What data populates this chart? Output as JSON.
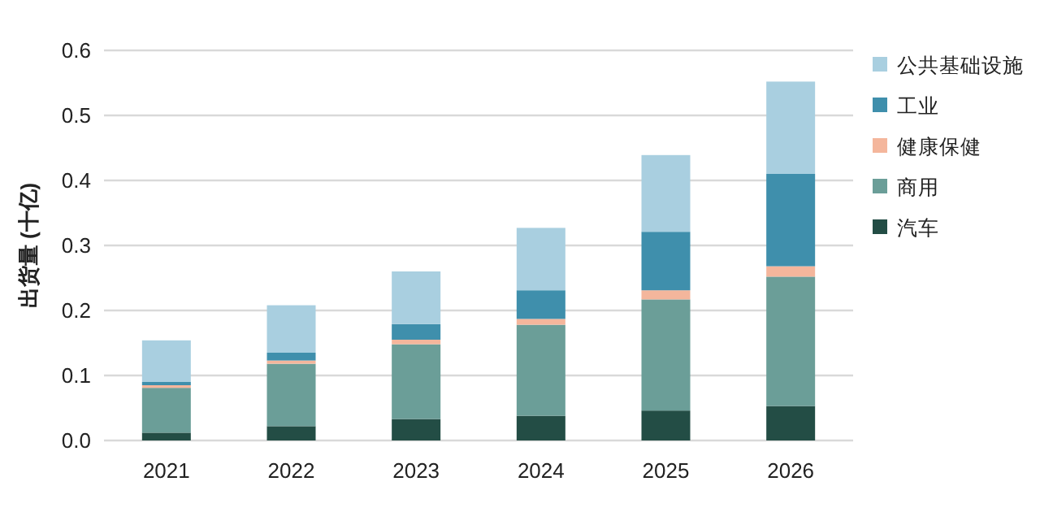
{
  "chart_data": {
    "type": "bar",
    "stacked": true,
    "ylabel": "出货量 (十亿)",
    "categories": [
      "2021",
      "2022",
      "2023",
      "2024",
      "2025",
      "2026"
    ],
    "series": [
      {
        "name": "汽车",
        "color": "#234d45",
        "values": [
          0.012,
          0.022,
          0.033,
          0.038,
          0.046,
          0.053
        ]
      },
      {
        "name": "商用",
        "color": "#6b9e98",
        "values": [
          0.069,
          0.096,
          0.115,
          0.14,
          0.171,
          0.199
        ]
      },
      {
        "name": "健康保健",
        "color": "#f4b69c",
        "values": [
          0.004,
          0.005,
          0.007,
          0.009,
          0.014,
          0.016
        ]
      },
      {
        "name": "工业",
        "color": "#3f8fac",
        "values": [
          0.005,
          0.012,
          0.024,
          0.044,
          0.09,
          0.142
        ]
      },
      {
        "name": "公共基础设施",
        "color": "#a9cfe0",
        "values": [
          0.064,
          0.073,
          0.081,
          0.096,
          0.118,
          0.142
        ]
      }
    ],
    "ylim": [
      0,
      0.6
    ],
    "yticks": [
      {
        "value": 0,
        "label": "0.0"
      },
      0.1,
      0.2,
      0.3,
      0.4,
      0.5,
      0.6
    ],
    "grid": "y",
    "legend": "right"
  }
}
